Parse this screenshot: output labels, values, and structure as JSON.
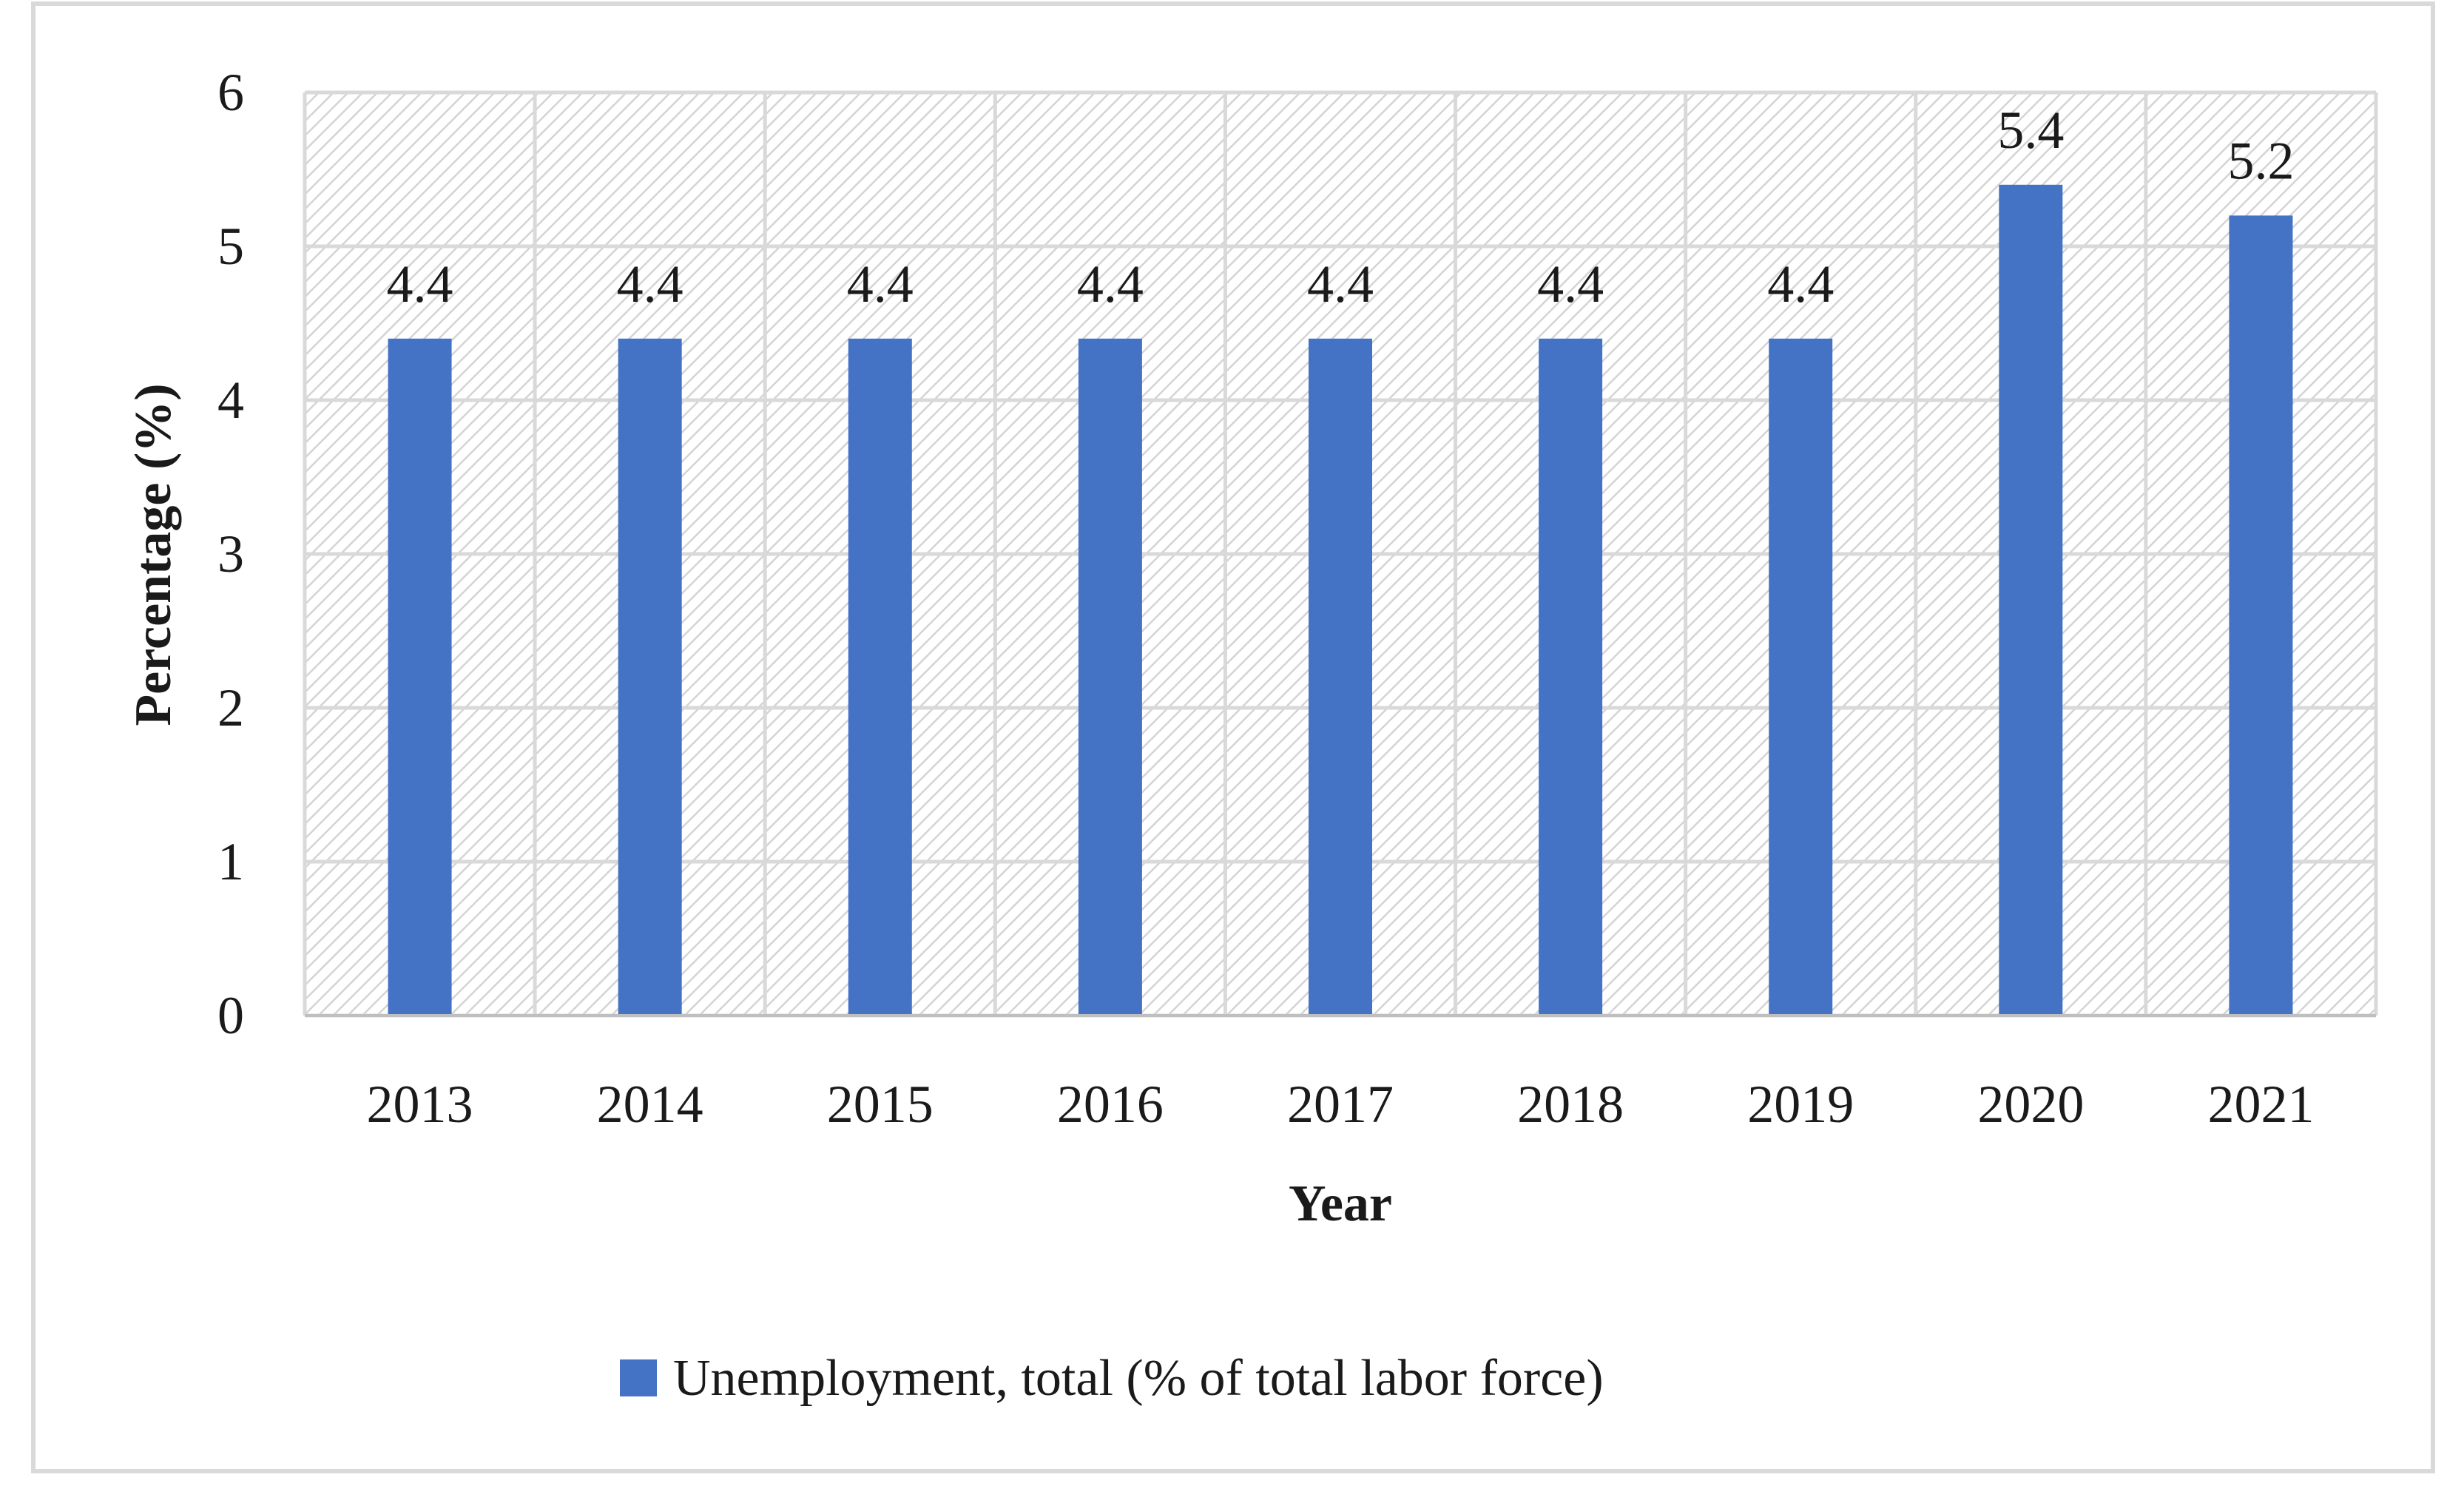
{
  "chart_data": {
    "type": "bar",
    "title": "",
    "xlabel": "Year",
    "ylabel": "Percentage (%)",
    "categories": [
      "2013",
      "2014",
      "2015",
      "2016",
      "2017",
      "2018",
      "2019",
      "2020",
      "2021"
    ],
    "series": [
      {
        "name": "Unemployment, total (% of total labor force)",
        "values": [
          4.4,
          4.4,
          4.4,
          4.4,
          4.4,
          4.4,
          4.4,
          5.4,
          5.2
        ],
        "color": "#4472c4"
      }
    ],
    "data_labels": [
      "4.4",
      "4.4",
      "4.4",
      "4.4",
      "4.4",
      "4.4",
      "4.4",
      "5.4",
      "5.2"
    ],
    "ylim": [
      0,
      6
    ],
    "yticks": [
      0,
      1,
      2,
      3,
      4,
      5,
      6
    ],
    "grid": true,
    "plot_background": "hatched light gray",
    "legend_position": "bottom"
  }
}
